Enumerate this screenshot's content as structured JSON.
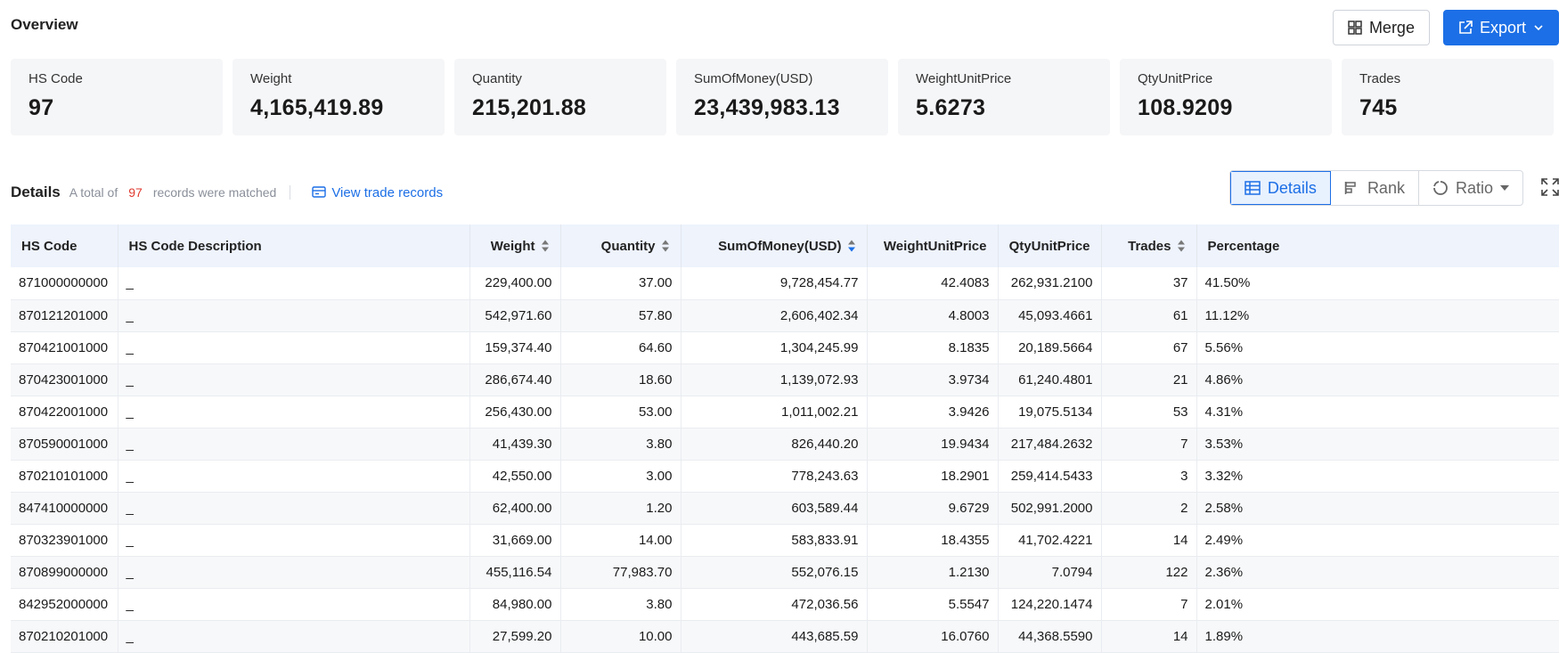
{
  "header": {
    "title": "Overview"
  },
  "actions": {
    "merge_label": "Merge",
    "export_label": "Export"
  },
  "stats": [
    {
      "label": "HS Code",
      "value": "97"
    },
    {
      "label": "Weight",
      "value": "4,165,419.89"
    },
    {
      "label": "Quantity",
      "value": "215,201.88"
    },
    {
      "label": "SumOfMoney(USD)",
      "value": "23,439,983.13"
    },
    {
      "label": "WeightUnitPrice",
      "value": "5.6273"
    },
    {
      "label": "QtyUnitPrice",
      "value": "108.9209"
    },
    {
      "label": "Trades",
      "value": "745"
    }
  ],
  "details": {
    "title": "Details",
    "desc_prefix": "A total of",
    "count": "97",
    "desc_suffix": "records were matched",
    "view_link": "View trade records"
  },
  "view_modes": {
    "details": "Details",
    "rank": "Rank",
    "ratio": "Ratio"
  },
  "colors": {
    "accent": "#1c6fe6",
    "count": "#e03a2f"
  },
  "table": {
    "headers": {
      "hs_code": "HS Code",
      "desc": "HS Code Description",
      "weight": "Weight",
      "quantity": "Quantity",
      "money": "SumOfMoney(USD)",
      "wup": "WeightUnitPrice",
      "qup": "QtyUnitPrice",
      "trades": "Trades",
      "pct": "Percentage"
    },
    "rows": [
      {
        "hs": "871000000000",
        "desc": "_",
        "weight": "229,400.00",
        "qty": "37.00",
        "money": "9,728,454.77",
        "wup": "42.4083",
        "qup": "262,931.2100",
        "trades": "37",
        "pct": "41.50%"
      },
      {
        "hs": "870121201000",
        "desc": "_",
        "weight": "542,971.60",
        "qty": "57.80",
        "money": "2,606,402.34",
        "wup": "4.8003",
        "qup": "45,093.4661",
        "trades": "61",
        "pct": "11.12%"
      },
      {
        "hs": "870421001000",
        "desc": "_",
        "weight": "159,374.40",
        "qty": "64.60",
        "money": "1,304,245.99",
        "wup": "8.1835",
        "qup": "20,189.5664",
        "trades": "67",
        "pct": "5.56%"
      },
      {
        "hs": "870423001000",
        "desc": "_",
        "weight": "286,674.40",
        "qty": "18.60",
        "money": "1,139,072.93",
        "wup": "3.9734",
        "qup": "61,240.4801",
        "trades": "21",
        "pct": "4.86%"
      },
      {
        "hs": "870422001000",
        "desc": "_",
        "weight": "256,430.00",
        "qty": "53.00",
        "money": "1,011,002.21",
        "wup": "3.9426",
        "qup": "19,075.5134",
        "trades": "53",
        "pct": "4.31%"
      },
      {
        "hs": "870590001000",
        "desc": "_",
        "weight": "41,439.30",
        "qty": "3.80",
        "money": "826,440.20",
        "wup": "19.9434",
        "qup": "217,484.2632",
        "trades": "7",
        "pct": "3.53%"
      },
      {
        "hs": "870210101000",
        "desc": "_",
        "weight": "42,550.00",
        "qty": "3.00",
        "money": "778,243.63",
        "wup": "18.2901",
        "qup": "259,414.5433",
        "trades": "3",
        "pct": "3.32%"
      },
      {
        "hs": "847410000000",
        "desc": "_",
        "weight": "62,400.00",
        "qty": "1.20",
        "money": "603,589.44",
        "wup": "9.6729",
        "qup": "502,991.2000",
        "trades": "2",
        "pct": "2.58%"
      },
      {
        "hs": "870323901000",
        "desc": "_",
        "weight": "31,669.00",
        "qty": "14.00",
        "money": "583,833.91",
        "wup": "18.4355",
        "qup": "41,702.4221",
        "trades": "14",
        "pct": "2.49%"
      },
      {
        "hs": "870899000000",
        "desc": "_",
        "weight": "455,116.54",
        "qty": "77,983.70",
        "money": "552,076.15",
        "wup": "1.2130",
        "qup": "7.0794",
        "trades": "122",
        "pct": "2.36%"
      },
      {
        "hs": "842952000000",
        "desc": "_",
        "weight": "84,980.00",
        "qty": "3.80",
        "money": "472,036.56",
        "wup": "5.5547",
        "qup": "124,220.1474",
        "trades": "7",
        "pct": "2.01%"
      },
      {
        "hs": "870210201000",
        "desc": "_",
        "weight": "27,599.20",
        "qty": "10.00",
        "money": "443,685.59",
        "wup": "16.0760",
        "qup": "44,368.5590",
        "trades": "14",
        "pct": "1.89%"
      }
    ]
  }
}
